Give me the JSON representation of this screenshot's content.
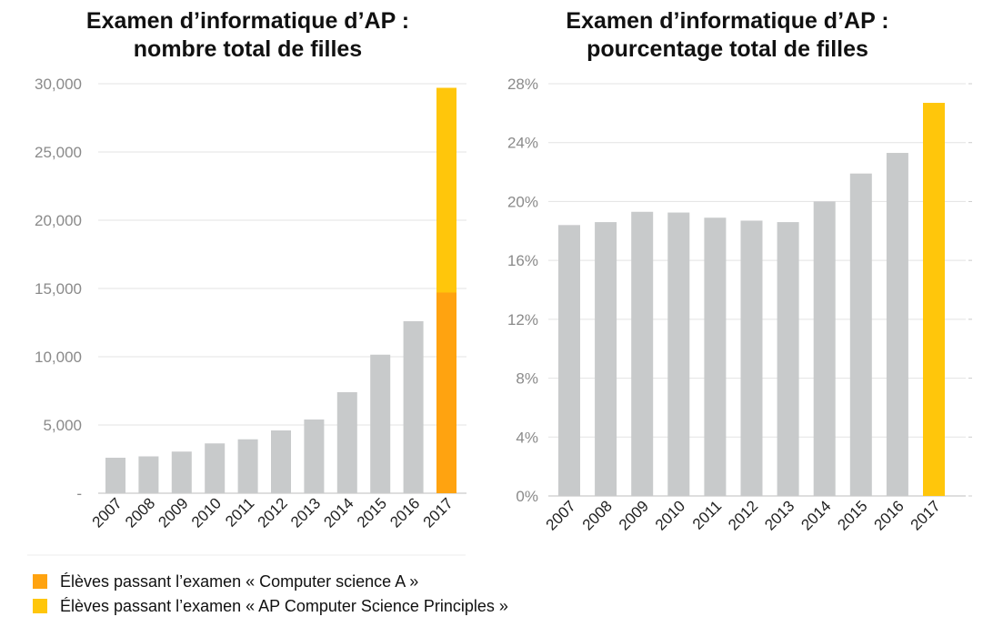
{
  "colors": {
    "bar_gray": "#c8cacb",
    "csa_orange": "#ffa310",
    "csp_yellow": "#ffc60b",
    "grid": "#e3e3e3",
    "axis": "#bdbdbd"
  },
  "chart_data": [
    {
      "type": "bar",
      "stacked": true,
      "title_lines": [
        "Examen d’informatique d’AP :",
        "nombre total de filles"
      ],
      "categories": [
        "2007",
        "2008",
        "2009",
        "2010",
        "2011",
        "2012",
        "2013",
        "2014",
        "2015",
        "2016",
        "2017"
      ],
      "values": [
        2600,
        2700,
        3050,
        3650,
        3950,
        4600,
        5400,
        7400,
        10150,
        12600,
        null
      ],
      "stack_2017": {
        "csa": 14700,
        "csp": 15000,
        "total": 29700
      },
      "ylim": [
        0,
        30000
      ],
      "yticks": [
        {
          "value": 0,
          "label": "-"
        },
        {
          "value": 5000,
          "label": "5,000"
        },
        {
          "value": 10000,
          "label": "10,000"
        },
        {
          "value": 15000,
          "label": "15,000"
        },
        {
          "value": 20000,
          "label": "20,000"
        },
        {
          "value": 25000,
          "label": "25,000"
        },
        {
          "value": 30000,
          "label": "30,000"
        }
      ],
      "grid": true
    },
    {
      "type": "bar",
      "title_lines": [
        "Examen d’informatique d’AP :",
        "pourcentage total de filles"
      ],
      "categories": [
        "2007",
        "2008",
        "2009",
        "2010",
        "2011",
        "2012",
        "2013",
        "2014",
        "2015",
        "2016",
        "2017"
      ],
      "values": [
        18.4,
        18.6,
        19.3,
        19.25,
        18.9,
        18.7,
        18.6,
        20.0,
        21.9,
        23.3,
        26.7
      ],
      "highlight_index": 10,
      "ylim": [
        0,
        28
      ],
      "yticks": [
        {
          "value": 0,
          "label": "0%"
        },
        {
          "value": 4,
          "label": "4%"
        },
        {
          "value": 8,
          "label": "8%"
        },
        {
          "value": 12,
          "label": "12%"
        },
        {
          "value": 16,
          "label": "16%"
        },
        {
          "value": 20,
          "label": "20%"
        },
        {
          "value": 24,
          "label": "24%"
        },
        {
          "value": 28,
          "label": "28%"
        }
      ],
      "grid": true
    }
  ],
  "legend": [
    {
      "key": "csa",
      "label": "Élèves passant l’examen « Computer science A »"
    },
    {
      "key": "csp",
      "label": "Élèves passant l’examen « AP Computer Science Principles »"
    }
  ]
}
